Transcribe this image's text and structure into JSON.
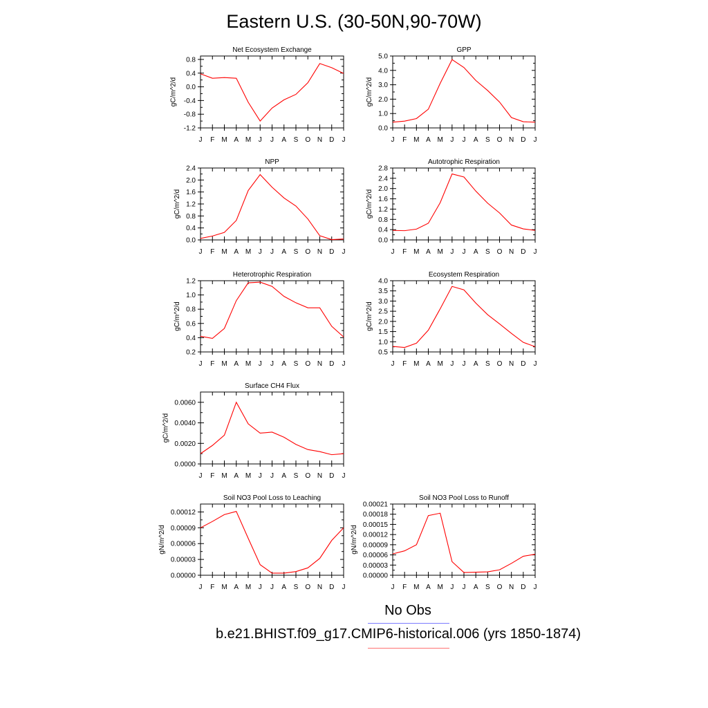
{
  "page": {
    "title": "Eastern U.S. (30-50N,90-70W)"
  },
  "legend": {
    "obs_label": "No Obs",
    "case_label": "b.e21.BHIST.f09_g17.CMIP6-historical.006 (yrs 1850-1874)",
    "obs_color": "#7b7bff",
    "case_color": "#ff7070"
  },
  "colors": {
    "series": "#ff0000",
    "axis": "#000000"
  },
  "chart_data": [
    {
      "type": "line",
      "title": "Net Ecosystem Exchange",
      "ylabel": "gC/m^2/d",
      "x": [
        "J",
        "F",
        "M",
        "A",
        "M",
        "J",
        "J",
        "A",
        "S",
        "O",
        "N",
        "D",
        "J"
      ],
      "ylim": [
        -1.2,
        0.9
      ],
      "yticks": [
        -1.2,
        -0.8,
        -0.4,
        0.0,
        0.4,
        0.8
      ],
      "ytick_labels": [
        "-1.2",
        "-0.8",
        "-0.4",
        "0.0",
        "0.4",
        "0.8"
      ],
      "values": [
        0.38,
        0.25,
        0.27,
        0.25,
        -0.45,
        -1.0,
        -0.62,
        -0.38,
        -0.22,
        0.12,
        0.68,
        0.56,
        0.39
      ]
    },
    {
      "type": "line",
      "title": "GPP",
      "ylabel": "gC/m^2/d",
      "x": [
        "J",
        "F",
        "M",
        "A",
        "M",
        "J",
        "J",
        "A",
        "S",
        "O",
        "N",
        "D",
        "J"
      ],
      "ylim": [
        0.0,
        5.0
      ],
      "yticks": [
        0.0,
        1.0,
        2.0,
        3.0,
        4.0,
        5.0
      ],
      "ytick_labels": [
        "0.0",
        "1.0",
        "2.0",
        "3.0",
        "4.0",
        "5.0"
      ],
      "values": [
        0.4,
        0.47,
        0.65,
        1.3,
        3.1,
        4.75,
        4.2,
        3.3,
        2.6,
        1.8,
        0.72,
        0.43,
        0.4
      ]
    },
    {
      "type": "line",
      "title": "NPP",
      "ylabel": "gC/m^2/d",
      "x": [
        "J",
        "F",
        "M",
        "A",
        "M",
        "J",
        "J",
        "A",
        "S",
        "O",
        "N",
        "D",
        "J"
      ],
      "ylim": [
        0.0,
        2.4
      ],
      "yticks": [
        0.0,
        0.4,
        0.8,
        1.2,
        1.6,
        2.0,
        2.4
      ],
      "ytick_labels": [
        "0.0",
        "0.4",
        "0.8",
        "1.2",
        "1.6",
        "2.0",
        "2.4"
      ],
      "values": [
        0.05,
        0.13,
        0.25,
        0.65,
        1.65,
        2.18,
        1.76,
        1.4,
        1.13,
        0.7,
        0.14,
        0.01,
        0.03
      ]
    },
    {
      "type": "line",
      "title": "Autotrophic Respiration",
      "ylabel": "gC/m^2/d",
      "x": [
        "J",
        "F",
        "M",
        "A",
        "M",
        "J",
        "J",
        "A",
        "S",
        "O",
        "N",
        "D",
        "J"
      ],
      "ylim": [
        0.0,
        2.8
      ],
      "yticks": [
        0.0,
        0.4,
        0.8,
        1.2,
        1.6,
        2.0,
        2.4,
        2.8
      ],
      "ytick_labels": [
        "0.0",
        "0.4",
        "0.8",
        "1.2",
        "1.6",
        "2.0",
        "2.4",
        "2.8"
      ],
      "values": [
        0.37,
        0.36,
        0.42,
        0.65,
        1.45,
        2.57,
        2.45,
        1.9,
        1.43,
        1.05,
        0.58,
        0.43,
        0.37
      ]
    },
    {
      "type": "line",
      "title": "Heterotrophic Respiration",
      "ylabel": "gC/m^2/d",
      "x": [
        "J",
        "F",
        "M",
        "A",
        "M",
        "J",
        "J",
        "A",
        "S",
        "O",
        "N",
        "D",
        "J"
      ],
      "ylim": [
        0.2,
        1.2
      ],
      "yticks": [
        0.2,
        0.4,
        0.6,
        0.8,
        1.0,
        1.2
      ],
      "ytick_labels": [
        "0.2",
        "0.4",
        "0.6",
        "0.8",
        "1.0",
        "1.2"
      ],
      "values": [
        0.42,
        0.39,
        0.53,
        0.92,
        1.17,
        1.18,
        1.12,
        0.98,
        0.89,
        0.82,
        0.82,
        0.56,
        0.41
      ]
    },
    {
      "type": "line",
      "title": "Ecosystem Respiration",
      "ylabel": "gC/m^2/d",
      "x": [
        "J",
        "F",
        "M",
        "A",
        "M",
        "J",
        "J",
        "A",
        "S",
        "O",
        "N",
        "D",
        "J"
      ],
      "ylim": [
        0.5,
        4.0
      ],
      "yticks": [
        0.5,
        1.0,
        1.5,
        2.0,
        2.5,
        3.0,
        3.5,
        4.0
      ],
      "ytick_labels": [
        "0.5",
        "1.0",
        "1.5",
        "2.0",
        "2.5",
        "3.0",
        "3.5",
        "4.0"
      ],
      "values": [
        0.77,
        0.72,
        0.93,
        1.57,
        2.62,
        3.72,
        3.55,
        2.9,
        2.33,
        1.88,
        1.41,
        0.97,
        0.76
      ]
    },
    {
      "type": "line",
      "title": "Surface CH4 Flux",
      "ylabel": "gC/m^2/d",
      "x": [
        "J",
        "F",
        "M",
        "A",
        "M",
        "J",
        "J",
        "A",
        "S",
        "O",
        "N",
        "D",
        "J"
      ],
      "ylim": [
        0.0,
        0.007
      ],
      "yticks": [
        0.0,
        0.002,
        0.004,
        0.006
      ],
      "ytick_labels": [
        "0.0000",
        "0.0020",
        "0.0040",
        "0.0060"
      ],
      "values": [
        0.001,
        0.0018,
        0.0028,
        0.006,
        0.0039,
        0.003,
        0.0031,
        0.0026,
        0.0019,
        0.0014,
        0.0012,
        0.0009,
        0.001
      ]
    },
    {
      "type": "line",
      "title": "Soil NO3 Pool Loss to Leaching",
      "ylabel": "gN/m^2/d",
      "x": [
        "J",
        "F",
        "M",
        "A",
        "M",
        "J",
        "J",
        "A",
        "S",
        "O",
        "N",
        "D",
        "J"
      ],
      "ylim": [
        0.0,
        0.000135
      ],
      "yticks": [
        0.0,
        3e-05,
        6e-05,
        9e-05,
        0.00012
      ],
      "ytick_labels": [
        "0.00000",
        "0.00003",
        "0.00006",
        "0.00009",
        "0.00012"
      ],
      "values": [
        9e-05,
        0.000102,
        0.000115,
        0.000121,
        7e-05,
        2e-05,
        4e-06,
        4e-06,
        7e-06,
        1.4e-05,
        3.2e-05,
        6.6e-05,
        9e-05
      ]
    },
    {
      "type": "line",
      "title": "Soil NO3 Pool Loss to Runoff",
      "ylabel": "gN/m^2/d",
      "x": [
        "J",
        "F",
        "M",
        "A",
        "M",
        "J",
        "J",
        "A",
        "S",
        "O",
        "N",
        "D",
        "J"
      ],
      "ylim": [
        0.0,
        0.00021
      ],
      "yticks": [
        0.0,
        3e-05,
        6e-05,
        9e-05,
        0.00012,
        0.00015,
        0.00018,
        0.00021
      ],
      "ytick_labels": [
        "0.00000",
        "0.00003",
        "0.00006",
        "0.00009",
        "0.00012",
        "0.00015",
        "0.00018",
        "0.00021"
      ],
      "values": [
        6.3e-05,
        7.2e-05,
        9e-05,
        0.000176,
        0.000183,
        4e-05,
        8e-06,
        9e-06,
        1e-05,
        1.6e-05,
        3.5e-05,
        5.6e-05,
        6.2e-05
      ]
    }
  ]
}
